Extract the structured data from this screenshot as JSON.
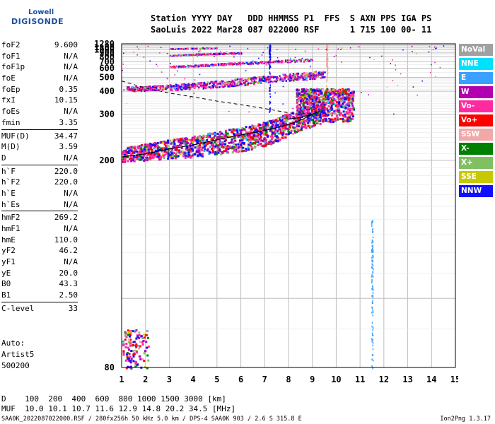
{
  "logo": {
    "line1": "Lowell",
    "line2": "DIGISONDE"
  },
  "header": {
    "line1": "Station YYYY DAY   DDD HHMMSS P1  FFS  S AXN PPS IGA PS",
    "line2": "SaoLuis 2022 Mar28 087 022000 RSF      1 715 100 00- 11"
  },
  "params_group1": [
    {
      "key": "foF2",
      "value": "9.600"
    },
    {
      "key": "foF1",
      "value": "N/A"
    },
    {
      "key": "foF1p",
      "value": "N/A"
    },
    {
      "key": "foE",
      "value": "N/A"
    },
    {
      "key": "foEp",
      "value": "0.35"
    },
    {
      "key": "fxI",
      "value": "10.15"
    },
    {
      "key": "foEs",
      "value": "N/A"
    },
    {
      "key": "fmin",
      "value": "3.35"
    }
  ],
  "params_group2": [
    {
      "key": "MUF(D)",
      "value": "34.47"
    },
    {
      "key": "M(D)",
      "value": "3.59"
    },
    {
      "key": "D",
      "value": "N/A"
    }
  ],
  "params_group3": [
    {
      "key": "h`F",
      "value": "220.0"
    },
    {
      "key": "h`F2",
      "value": "220.0"
    },
    {
      "key": "h`E",
      "value": "N/A"
    },
    {
      "key": "h`Es",
      "value": "N/A"
    }
  ],
  "params_group4": [
    {
      "key": "hmF2",
      "value": "269.2"
    },
    {
      "key": "hmF1",
      "value": "N/A"
    },
    {
      "key": "hmE",
      "value": "110.0"
    },
    {
      "key": "yF2",
      "value": "46.2"
    },
    {
      "key": "yF1",
      "value": "N/A"
    },
    {
      "key": "yE",
      "value": "20.0"
    },
    {
      "key": "B0",
      "value": "43.3"
    },
    {
      "key": "B1",
      "value": "2.50"
    }
  ],
  "params_group5": [
    {
      "key": "C-level",
      "value": "33"
    }
  ],
  "auto": {
    "line1": "Auto:",
    "line2": "Artist5",
    "line3": "500200"
  },
  "dmuf": {
    "d_line": "D    100  200  400  600  800 1000 1500 3000 [km]",
    "muf_line": "MUF  10.0 10.1 10.7 11.6 12.9 14.8 20.2 34.5 [MHz]"
  },
  "footer": "SAA0K_2022087022000.RSF / 280fx256h 50 kHz 5.0 km / DPS-4 SAA0K 903 / 2.6 S 315.8 E",
  "version": "Ion2Png 1.3.17",
  "legend": [
    {
      "label": "NoVal",
      "color": "#a0a0a0"
    },
    {
      "label": "NNE",
      "color": "#00e0ff"
    },
    {
      "label": "E",
      "color": "#3aa0ff"
    },
    {
      "label": "W",
      "color": "#b000b0"
    },
    {
      "label": "Vo-",
      "color": "#ff2aa0"
    },
    {
      "label": "Vo+",
      "color": "#ff0000"
    },
    {
      "label": "SSW",
      "color": "#f0a8a8"
    },
    {
      "label": "X-",
      "color": "#008000"
    },
    {
      "label": "X+",
      "color": "#80c060"
    },
    {
      "label": "SSE",
      "color": "#c8c800"
    },
    {
      "label": "NNW",
      "color": "#1010ff"
    }
  ],
  "chart_data": {
    "type": "scatter",
    "xlabel": "",
    "ylabel": "",
    "xlim": [
      1,
      15
    ],
    "ylim_reciprocal": [
      80,
      1280
    ],
    "x_ticks": [
      1,
      2,
      3,
      4,
      5,
      6,
      7,
      8,
      9,
      10,
      11,
      12,
      13,
      14,
      15
    ],
    "y_ticks": [
      80,
      200,
      300,
      400,
      500,
      600,
      700,
      800,
      900,
      1000,
      1100,
      1280
    ],
    "grid": true,
    "traces": [
      {
        "name": "O-trace",
        "x": [
          1.0,
          2.0,
          3.0,
          4.0,
          5.0,
          6.0,
          6.5,
          7.0,
          7.5,
          8.0,
          8.5,
          9.0,
          9.5
        ],
        "y": [
          210,
          215,
          220,
          225,
          232,
          240,
          245,
          252,
          262,
          275,
          290,
          300,
          310
        ]
      },
      {
        "name": "F multihop 2",
        "x": [
          1.2,
          1.8,
          2.5,
          3.5,
          4.5,
          5.5,
          6.5,
          7.5,
          8.5,
          9.5
        ],
        "y": [
          420,
          418,
          425,
          432,
          445,
          460,
          480,
          500,
          520,
          540
        ]
      },
      {
        "name": "F multihop 3",
        "x": [
          3.0,
          4.0,
          5.0,
          6.0,
          7.0,
          8.0,
          9.0
        ],
        "y": [
          625,
          640,
          660,
          680,
          700,
          720,
          740
        ]
      },
      {
        "name": "F multihop 4",
        "x": [
          3.0,
          4.0,
          5.0,
          6.0
        ],
        "y": [
          840,
          870,
          890,
          910
        ]
      },
      {
        "name": "F multihop 5",
        "x": [
          3.0,
          4.0,
          5.0
        ],
        "y": [
          1050,
          1070,
          1090
        ]
      }
    ],
    "profile_curve": {
      "x": [
        1.0,
        2.0,
        3.0,
        4.0,
        5.0,
        6.0,
        7.0,
        8.0,
        8.6,
        9.0,
        9.3,
        9.0,
        8.5,
        8.0
      ],
      "y": [
        205,
        210,
        218,
        225,
        235,
        245,
        255,
        270,
        285,
        300,
        310,
        300,
        290,
        285
      ]
    },
    "dashed_curve": {
      "x": [
        1.0,
        2.0,
        3.0,
        4.0,
        5.0,
        6.0,
        7.0,
        8.0,
        8.5
      ],
      "y": [
        470,
        420,
        390,
        370,
        350,
        335,
        320,
        305,
        300
      ]
    },
    "spikes": [
      {
        "x": 7.2,
        "y_from": 300,
        "y_to": 1280
      },
      {
        "x": 9.6,
        "y_from": 400,
        "y_to": 1280
      },
      {
        "x": 11.5,
        "y_from": 80,
        "y_to": 140
      }
    ]
  }
}
